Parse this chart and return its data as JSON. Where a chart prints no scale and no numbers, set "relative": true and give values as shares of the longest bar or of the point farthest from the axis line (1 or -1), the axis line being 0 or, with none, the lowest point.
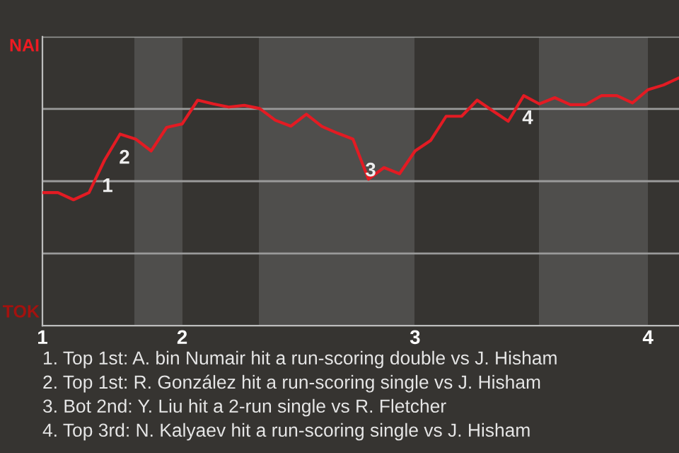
{
  "chart_data": {
    "type": "line",
    "relative": true,
    "categories": [
      "1",
      null,
      null,
      null,
      null,
      null,
      null,
      null,
      null,
      "2",
      null,
      null,
      null,
      null,
      null,
      null,
      null,
      null,
      null,
      null,
      null,
      null,
      null,
      null,
      "3",
      null,
      null,
      null,
      null,
      null,
      null,
      null,
      null,
      null,
      null,
      null,
      null,
      null,
      null,
      "4",
      null,
      null
    ],
    "series": [
      {
        "color": "#e31b23",
        "values": [
          0.537,
          0.537,
          0.508,
          0.537,
          0.668,
          0.773,
          0.753,
          0.705,
          0.8,
          0.814,
          0.91,
          0.895,
          0.882,
          0.889,
          0.876,
          0.829,
          0.805,
          0.853,
          0.804,
          0.777,
          0.753,
          0.591,
          0.638,
          0.613,
          0.705,
          0.747,
          0.845,
          0.845,
          0.91,
          0.867,
          0.825,
          0.928,
          0.895,
          0.92,
          0.892,
          0.892,
          0.928,
          0.928,
          0.899,
          0.952,
          0.971,
          1
        ]
      }
    ],
    "grid": "y",
    "legend": false,
    "annotations": [
      "NAI",
      "TOK",
      "1",
      "2",
      "3",
      "4",
      "1. Top 1st: A. bin Numair hit a run-scoring double vs J. Hisham",
      "2. Top 1st: R. González hit a run-scoring single vs J. Hisham",
      "3. Bot 2nd: Y. Liu hit a 2-run single vs R. Fletcher",
      "4. Top 3rd: N. Kalyaev hit a run-scoring single vs J. Hisham"
    ]
  }
}
